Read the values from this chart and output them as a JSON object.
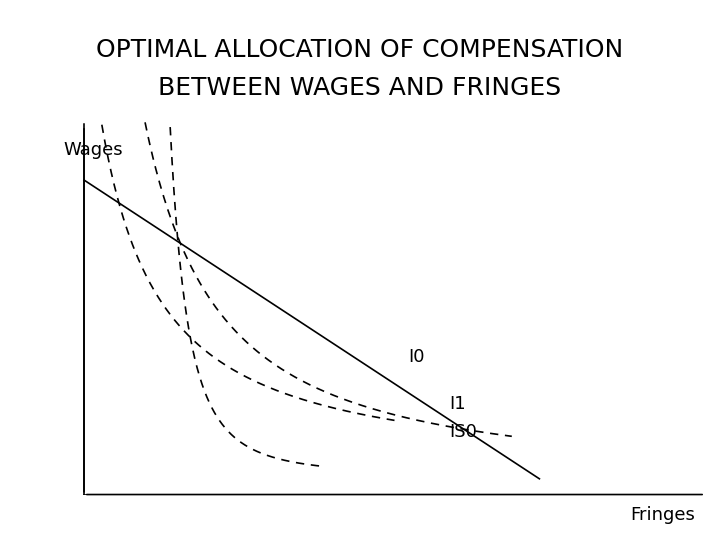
{
  "title_line1": "OPTIMAL ALLOCATION OF COMPENSATION",
  "title_line2": "BETWEEN WAGES AND FRINGES",
  "xlabel": "Fringes",
  "ylabel": "Wages",
  "title_fontsize": 18,
  "label_fontsize": 13,
  "background_color": "#ffffff",
  "curve_color": "#000000",
  "IS0_label": "IS0",
  "I0_label": "I0",
  "I1_label": "I1"
}
